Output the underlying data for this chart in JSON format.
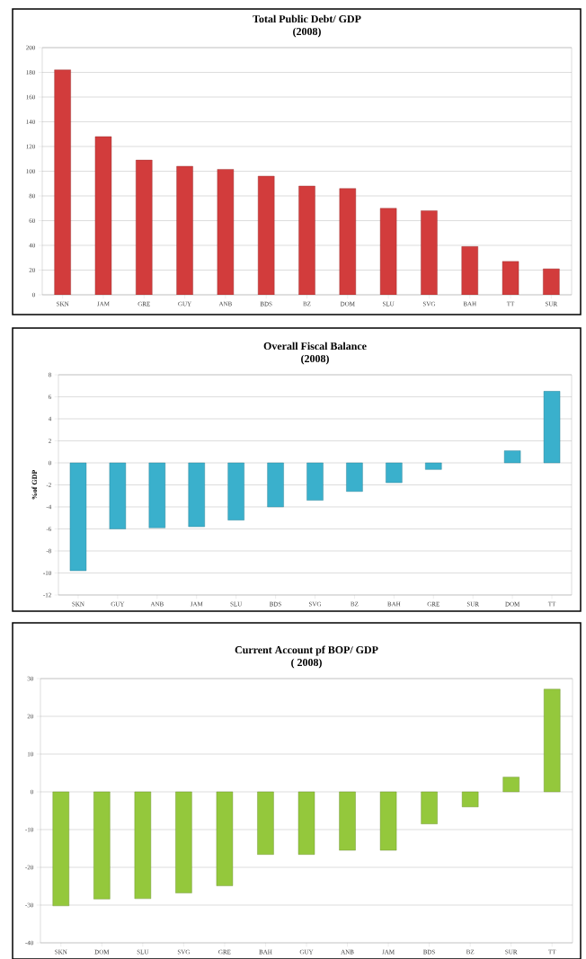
{
  "chart_data": [
    {
      "type": "bar",
      "title": "Total Public Debt/ GDP",
      "subtitle": "(2008)",
      "categories": [
        "SKN",
        "JAM",
        "GRE",
        "GUY",
        "ANB",
        "BDS",
        "BZ",
        "DOM",
        "SLU",
        "SVG",
        "BAH",
        "TT",
        "SUR"
      ],
      "values": [
        182,
        128,
        109,
        104,
        101.5,
        96,
        88,
        86,
        70,
        68,
        39,
        27,
        21
      ],
      "color": "#d23c3c",
      "ylim": [
        0,
        200
      ],
      "yticks": [
        0,
        20,
        40,
        60,
        80,
        100,
        120,
        140,
        160,
        180,
        200
      ],
      "grid": "y"
    },
    {
      "type": "bar",
      "title": "Overall Fiscal Balance",
      "subtitle": "(2008)",
      "ylabel": "%of GDP",
      "categories": [
        "SKN",
        "GUY",
        "ANB",
        "JAM",
        "SLU",
        "BDS",
        "SVG",
        "BZ",
        "BAH",
        "GRE",
        "SUR",
        "DOM",
        "TT"
      ],
      "values": [
        -9.8,
        -6,
        -5.9,
        -5.8,
        -5.2,
        -4,
        -3.4,
        -2.6,
        -1.8,
        -0.6,
        null,
        1.1,
        6.5
      ],
      "color": "#3ab0cc",
      "ylim": [
        -12,
        8
      ],
      "yticks": [
        -12,
        -10,
        -8,
        -6,
        -4,
        -2,
        0,
        2,
        4,
        6,
        8
      ],
      "grid": "y"
    },
    {
      "type": "bar",
      "title": "Current Account pf BOP/ GDP",
      "subtitle": "( 2008)",
      "categories": [
        "SKN",
        "DOM",
        "SLU",
        "SVG",
        "GRE",
        "BAH",
        "GUY",
        "ANB",
        "JAM",
        "BDS",
        "BZ",
        "SUR",
        "TT"
      ],
      "values": [
        -30.2,
        -28.4,
        -28.3,
        -26.8,
        -24.9,
        -16.6,
        -16.6,
        -15.5,
        -15.5,
        -8.5,
        -4,
        3.9,
        27.2
      ],
      "color": "#94c83c",
      "ylim": [
        -40,
        30
      ],
      "yticks": [
        -40,
        -30,
        -20,
        -10,
        0,
        10,
        20,
        30
      ],
      "grid": "y"
    }
  ]
}
